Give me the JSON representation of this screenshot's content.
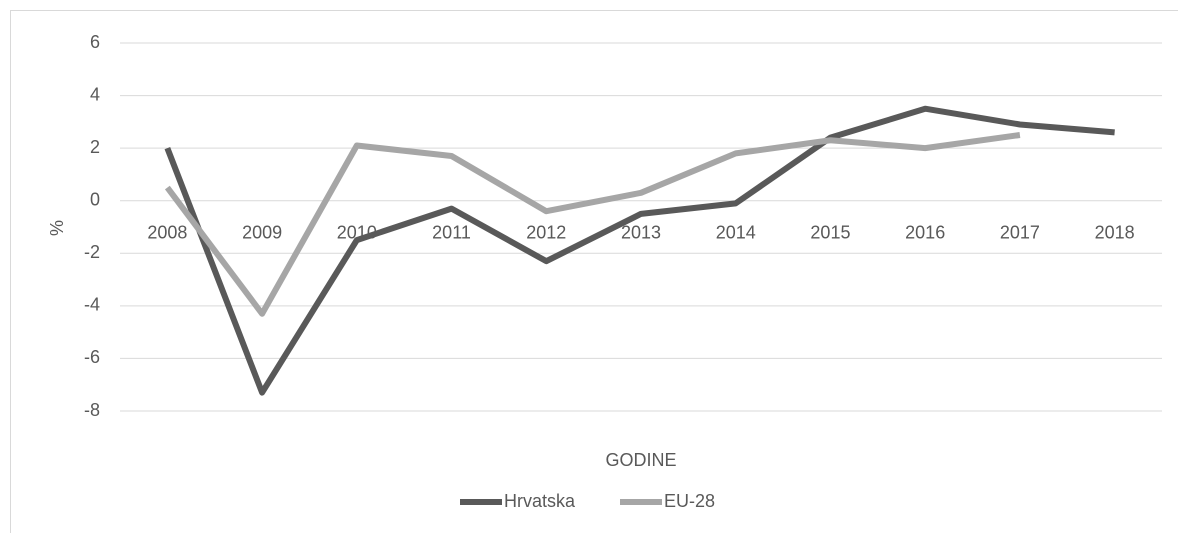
{
  "chart_data": {
    "type": "line",
    "y_label": "%",
    "x_label": "GODINE",
    "categories": [
      "2008",
      "2009",
      "2010",
      "2011",
      "2012",
      "2013",
      "2014",
      "2015",
      "2016",
      "2017",
      "2018"
    ],
    "series": [
      {
        "name": "Hrvatska",
        "color": "#595959",
        "values": [
          2.0,
          -7.3,
          -1.5,
          -0.3,
          -2.3,
          -0.5,
          -0.1,
          2.4,
          3.5,
          2.9,
          2.6
        ]
      },
      {
        "name": "EU-28",
        "color": "#a6a6a6",
        "values": [
          0.5,
          -4.3,
          2.1,
          1.7,
          -0.4,
          0.3,
          1.8,
          2.3,
          2.0,
          2.5,
          null
        ]
      }
    ],
    "ylim": [
      -8,
      6
    ],
    "yticks": [
      -8,
      -6,
      -4,
      -2,
      0,
      2,
      4,
      6
    ],
    "grid": true,
    "legend": "bottom"
  }
}
